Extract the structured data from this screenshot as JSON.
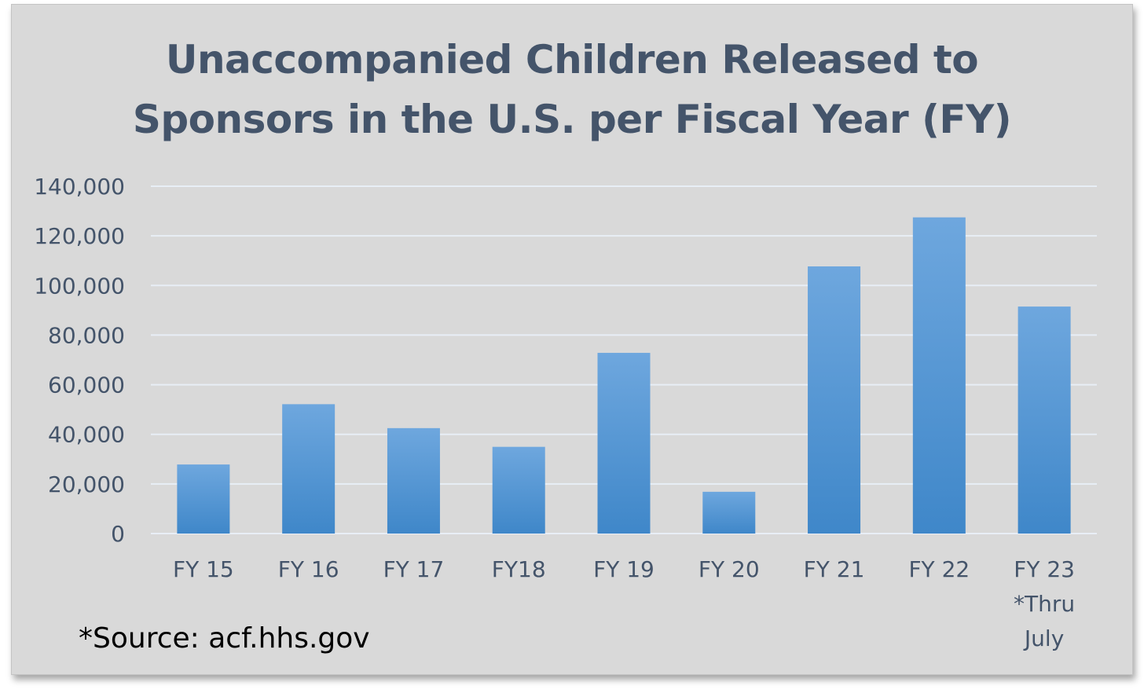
{
  "chart_data": {
    "type": "bar",
    "title_lines": [
      "Unaccompanied Children Released to",
      "Sponsors in the U.S. per Fiscal Year (FY)"
    ],
    "categories": [
      [
        "FY 15"
      ],
      [
        "FY 16"
      ],
      [
        "FY 17"
      ],
      [
        "FY18"
      ],
      [
        "FY 19"
      ],
      [
        "FY 20"
      ],
      [
        "FY 21"
      ],
      [
        "FY 22"
      ],
      [
        "FY 23",
        "*Thru",
        "July"
      ]
    ],
    "values": [
      27840,
      52147,
      42497,
      34953,
      72837,
      16837,
      107686,
      127447,
      91500
    ],
    "y_ticks": [
      "0",
      "20,000",
      "40,000",
      "60,000",
      "80,000",
      "100,000",
      "120,000",
      "140,000"
    ],
    "ylim": [
      0,
      140000
    ],
    "grid": true,
    "legend": "none",
    "xlabel": "",
    "ylabel": ""
  },
  "source_note": "*Source: acf.hhs.gov",
  "colors": {
    "background": "#d9d9d9",
    "title": "#44546a",
    "axis_text": "#44546a",
    "gridline": "#e8eef6",
    "bar_top": "#6ea7de",
    "bar_bottom": "#3f87c9"
  }
}
